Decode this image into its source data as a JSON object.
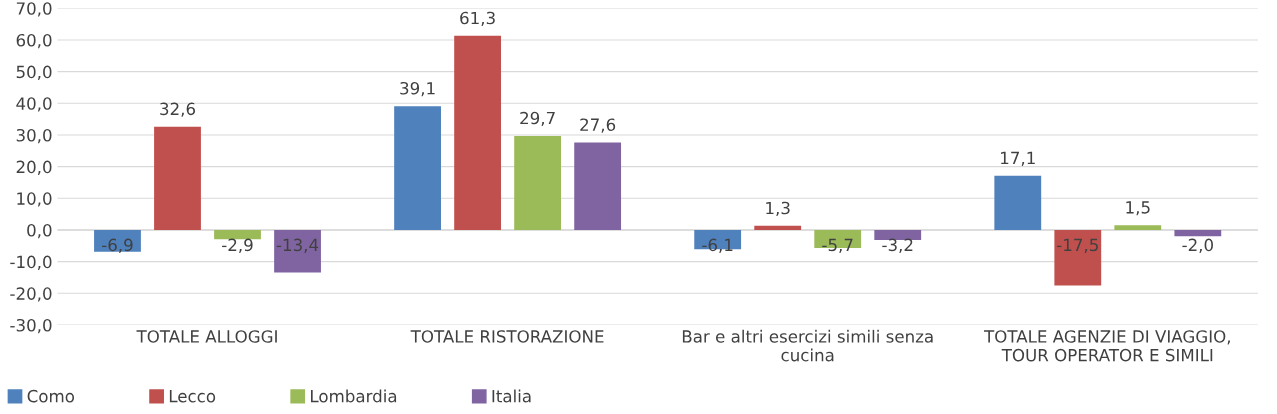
{
  "chart_data": {
    "type": "bar",
    "categories": [
      "TOTALE ALLOGGI",
      "TOTALE RISTORAZIONE",
      "Bar e altri esercizi simili senza\ncucina",
      "TOTALE AGENZIE DI VIAGGIO,\nTOUR OPERATOR E SIMILI"
    ],
    "series": [
      {
        "name": "Como",
        "color": "#4f81bd",
        "values": [
          -6.9,
          39.1,
          -6.1,
          17.1
        ],
        "value_labels": [
          "-6,9",
          "39,1",
          "-6,1",
          "17,1"
        ]
      },
      {
        "name": "Lecco",
        "color": "#c0504d",
        "values": [
          32.6,
          61.3,
          1.3,
          -17.5
        ],
        "value_labels": [
          "32,6",
          "61,3",
          "1,3",
          "-17,5"
        ]
      },
      {
        "name": "Lombardia",
        "color": "#9bbb59",
        "values": [
          -2.9,
          29.7,
          -5.7,
          1.5
        ],
        "value_labels": [
          "-2,9",
          "29,7",
          "-5,7",
          "1,5"
        ]
      },
      {
        "name": "Italia",
        "color": "#8064a2",
        "values": [
          -13.4,
          27.6,
          -3.2,
          -2.0
        ],
        "value_labels": [
          "-13,4",
          "27,6",
          "-3,2",
          "-2,0"
        ]
      }
    ],
    "ylim": [
      -30,
      70
    ],
    "yticks": [
      {
        "value": -30,
        "label": "-30,0"
      },
      {
        "value": -20,
        "label": "-20,0"
      },
      {
        "value": -10,
        "label": "-10,0"
      },
      {
        "value": 0,
        "label": "0,0"
      },
      {
        "value": 10,
        "label": "10,0"
      },
      {
        "value": 20,
        "label": "20,0"
      },
      {
        "value": 30,
        "label": "30,0"
      },
      {
        "value": 40,
        "label": "40,0"
      },
      {
        "value": 50,
        "label": "50,0"
      },
      {
        "value": 60,
        "label": "60,0"
      },
      {
        "value": 70,
        "label": "70,0"
      }
    ],
    "grid": "y",
    "legend": "bottom left"
  }
}
